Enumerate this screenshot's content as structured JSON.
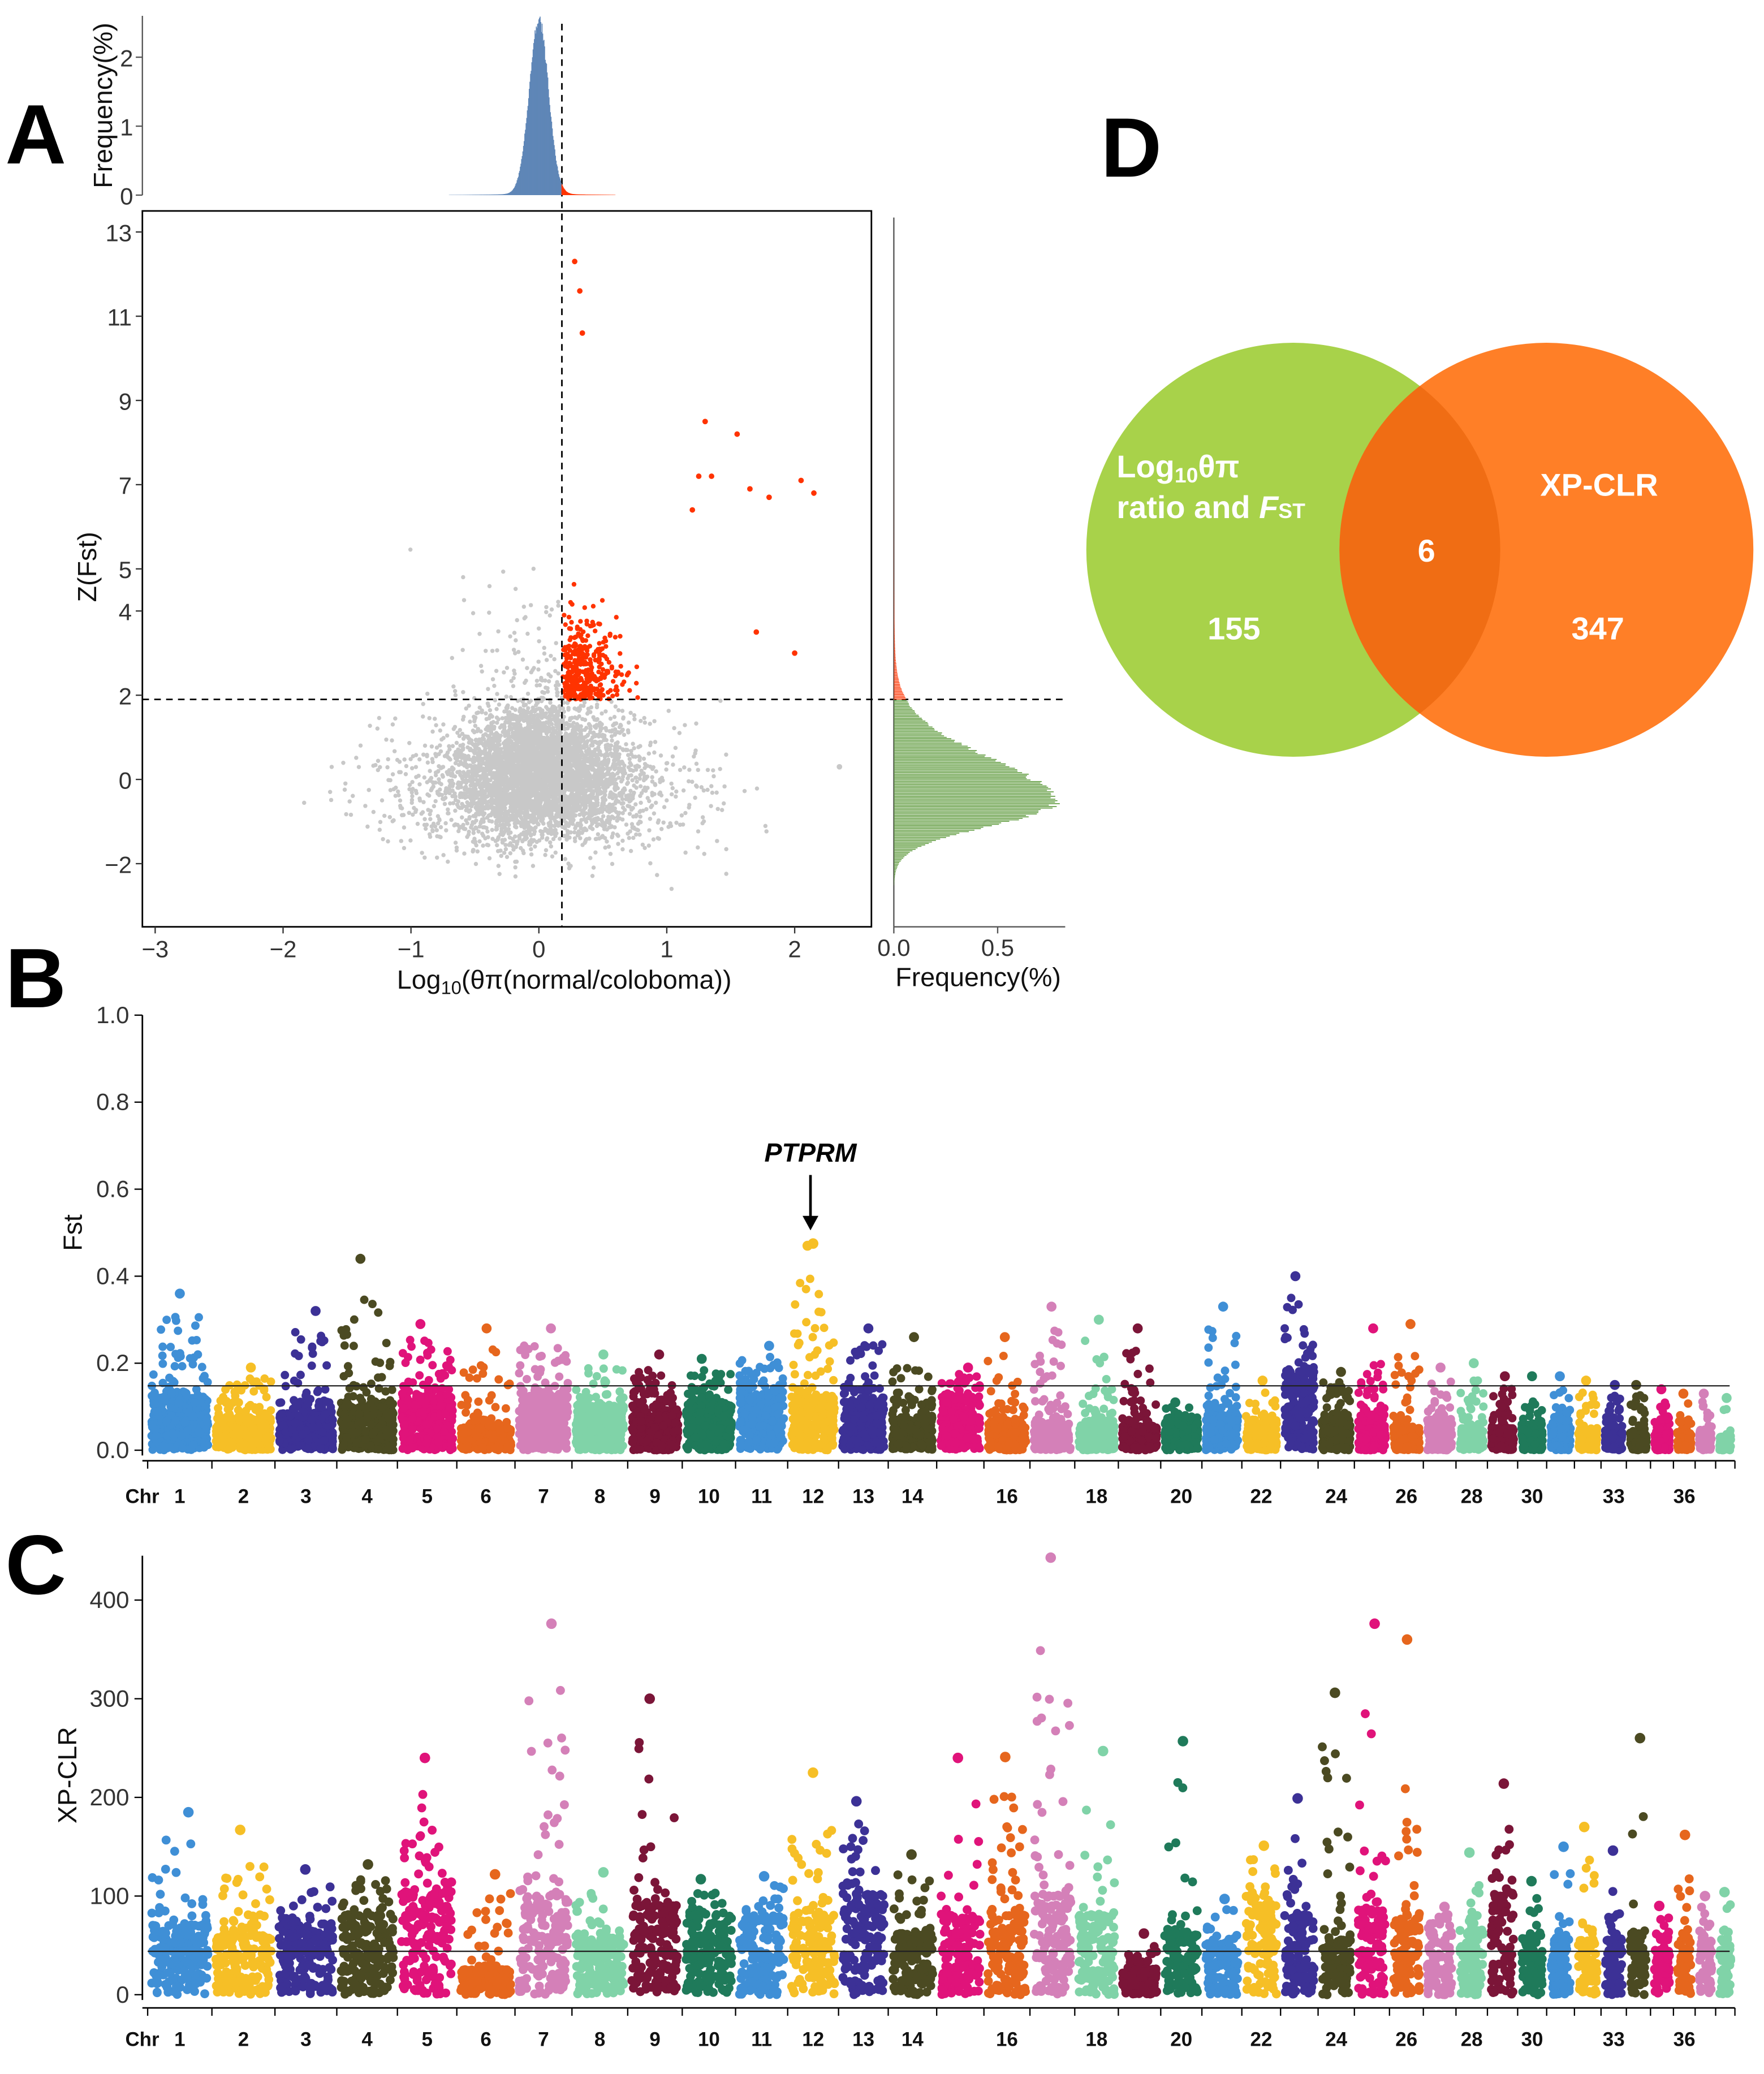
{
  "panels": {
    "a": "A",
    "b": "B",
    "c": "C",
    "d": "D"
  },
  "colors": {
    "gray": "#c8c8c8",
    "red": "#ff3300",
    "blue_hist": "#5f86b7",
    "green_hist": "#5e9a3c",
    "venn_green": "#a8d24a",
    "venn_orange": "#ff7f27",
    "venn_overlap": "#f06d14",
    "chr_palette": [
      "#3f8fd6",
      "#f6bf26",
      "#3c3196",
      "#4b4a22",
      "#e0137a",
      "#e6661d",
      "#d480b8",
      "#80d3a8",
      "#7b1538",
      "#1f7a5a"
    ]
  },
  "chart_data": [
    {
      "id": "A",
      "type": "scatter",
      "xlabel": "Log10(θπ(normal/coloboma))",
      "xlabel_main": "Log",
      "xlabel_sub": "10",
      "xlabel_rest": "(θπ(normal/coloboma))",
      "ylabel": "Z(Fst)",
      "xlim": [
        -3.1,
        2.6
      ],
      "ylim": [
        -3.5,
        13.5
      ],
      "xticks": [
        "−3",
        "−2",
        "−1",
        "0",
        "1",
        "2"
      ],
      "xtick_values": [
        -3,
        -2,
        -1,
        0,
        1,
        2
      ],
      "yticks": [
        "−2",
        "0",
        "2",
        "4",
        "5",
        "7",
        "9",
        "11",
        "13"
      ],
      "ytick_values": [
        -2,
        0,
        2,
        4,
        5,
        7,
        9,
        11,
        13
      ],
      "x_threshold": 0.18,
      "y_threshold": 1.9,
      "notable_points": [
        {
          "x": 0.28,
          "y": 12.3
        },
        {
          "x": 0.32,
          "y": 11.6
        },
        {
          "x": 0.34,
          "y": 10.6
        },
        {
          "x": 1.3,
          "y": 8.5
        },
        {
          "x": 1.55,
          "y": 8.2
        },
        {
          "x": 2.05,
          "y": 7.1
        },
        {
          "x": 2.15,
          "y": 6.8
        },
        {
          "x": 1.65,
          "y": 6.9
        },
        {
          "x": 1.8,
          "y": 6.7
        },
        {
          "x": 1.25,
          "y": 7.2
        },
        {
          "x": 1.35,
          "y": 7.2
        },
        {
          "x": 1.2,
          "y": 6.4
        },
        {
          "x": 2.0,
          "y": 3.0
        },
        {
          "x": 1.7,
          "y": 3.5
        },
        {
          "x": 2.35,
          "y": 0.3
        }
      ],
      "top_histogram": {
        "ylabel": "Frequency(%)",
        "yticks": [
          "0",
          "1",
          "2"
        ],
        "ytick_values": [
          0,
          1,
          2
        ],
        "peak": 2.6
      },
      "right_histogram": {
        "xlabel": "Frequency(%)",
        "xticks": [
          "0.0",
          "0.5"
        ],
        "xtick_values": [
          0.0,
          0.5
        ],
        "peak": 0.8
      }
    },
    {
      "id": "B",
      "type": "scatter",
      "subtype": "manhattan",
      "ylabel": "Fst",
      "ylim": [
        0.0,
        1.0
      ],
      "yticks": [
        "0.0",
        "0.2",
        "0.4",
        "0.6",
        "0.8",
        "1.0"
      ],
      "ytick_values": [
        0.0,
        0.2,
        0.4,
        0.6,
        0.8,
        1.0
      ],
      "threshold": 0.148,
      "chr_axis_label": "Chr",
      "chr_labels": [
        {
          "label": "1",
          "chr": 1
        },
        {
          "label": "2",
          "chr": 2
        },
        {
          "label": "3",
          "chr": 3
        },
        {
          "label": "4",
          "chr": 4
        },
        {
          "label": "5",
          "chr": 5
        },
        {
          "label": "6",
          "chr": 6
        },
        {
          "label": "7",
          "chr": 7
        },
        {
          "label": "8",
          "chr": 8
        },
        {
          "label": "9",
          "chr": 9
        },
        {
          "label": "10",
          "chr": 10
        },
        {
          "label": "11",
          "chr": 11
        },
        {
          "label": "12",
          "chr": 12
        },
        {
          "label": "13",
          "chr": 13
        },
        {
          "label": "14",
          "chr": 14
        },
        {
          "label": "16",
          "chr": 16
        },
        {
          "label": "18",
          "chr": 18
        },
        {
          "label": "20",
          "chr": 20
        },
        {
          "label": "22",
          "chr": 22
        },
        {
          "label": "24",
          "chr": 24
        },
        {
          "label": "26",
          "chr": 26
        },
        {
          "label": "28",
          "chr": 28
        },
        {
          "label": "30",
          "chr": 30
        },
        {
          "label": "33",
          "chr": 33
        },
        {
          "label": "36",
          "chr": 36
        }
      ],
      "chr_max": [
        0.36,
        0.19,
        0.32,
        0.44,
        0.29,
        0.28,
        0.28,
        0.22,
        0.22,
        0.21,
        0.24,
        0.47,
        0.28,
        0.26,
        0.19,
        0.26,
        0.33,
        0.3,
        0.28,
        0.11,
        0.33,
        0.16,
        0.4,
        0.18,
        0.28,
        0.29,
        0.19,
        0.2,
        0.17,
        0.17,
        0.17,
        0.16,
        0.15,
        0.15,
        0.14,
        0.13,
        0.13,
        0.12
      ],
      "chr_base": [
        0.12,
        0.07,
        0.08,
        0.1,
        0.12,
        0.05,
        0.12,
        0.1,
        0.08,
        0.1,
        0.12,
        0.12,
        0.11,
        0.07,
        0.12,
        0.06,
        0.06,
        0.06,
        0.05,
        0.06,
        0.08,
        0.05,
        0.18,
        0.07,
        0.08,
        0.05,
        0.06,
        0.05,
        0.05,
        0.05,
        0.05,
        0.04,
        0.04,
        0.04,
        0.04,
        0.04,
        0.04,
        0.03
      ],
      "annotation": {
        "label": "PTPRM",
        "chr": 12,
        "value": 0.475
      }
    },
    {
      "id": "C",
      "type": "scatter",
      "subtype": "manhattan",
      "ylabel": "XP-CLR",
      "ylim": [
        0,
        445
      ],
      "yticks": [
        "0",
        "100",
        "200",
        "300",
        "400"
      ],
      "ytick_values": [
        0,
        100,
        200,
        300,
        400
      ],
      "threshold": 44,
      "chr_axis_label": "Chr",
      "chr_labels": [
        {
          "label": "1",
          "chr": 1
        },
        {
          "label": "2",
          "chr": 2
        },
        {
          "label": "3",
          "chr": 3
        },
        {
          "label": "4",
          "chr": 4
        },
        {
          "label": "5",
          "chr": 5
        },
        {
          "label": "6",
          "chr": 6
        },
        {
          "label": "7",
          "chr": 7
        },
        {
          "label": "8",
          "chr": 8
        },
        {
          "label": "9",
          "chr": 9
        },
        {
          "label": "10",
          "chr": 10
        },
        {
          "label": "11",
          "chr": 11
        },
        {
          "label": "12",
          "chr": 12
        },
        {
          "label": "13",
          "chr": 13
        },
        {
          "label": "14",
          "chr": 14
        },
        {
          "label": "16",
          "chr": 16
        },
        {
          "label": "18",
          "chr": 18
        },
        {
          "label": "20",
          "chr": 20
        },
        {
          "label": "22",
          "chr": 22
        },
        {
          "label": "24",
          "chr": 24
        },
        {
          "label": "26",
          "chr": 26
        },
        {
          "label": "28",
          "chr": 28
        },
        {
          "label": "30",
          "chr": 30
        },
        {
          "label": "33",
          "chr": 33
        },
        {
          "label": "36",
          "chr": 36
        }
      ],
      "chr_max": [
        185,
        167,
        127,
        132,
        240,
        122,
        376,
        124,
        300,
        117,
        120,
        225,
        196,
        142,
        240,
        241,
        443,
        247,
        62,
        257,
        97,
        151,
        199,
        306,
        376,
        360,
        89,
        144,
        214,
        115,
        150,
        170,
        146,
        260,
        90,
        162,
        100,
        104
      ],
      "chr_base": [
        70,
        60,
        70,
        80,
        100,
        25,
        100,
        55,
        90,
        80,
        75,
        80,
        100,
        60,
        75,
        80,
        100,
        80,
        25,
        60,
        50,
        90,
        80,
        55,
        85,
        80,
        60,
        65,
        100,
        55,
        55,
        55,
        55,
        60,
        45,
        55,
        55,
        55
      ]
    },
    {
      "id": "D",
      "type": "venn",
      "sets": [
        {
          "name": "Log10θπ ratio and FST",
          "line1_main": "Log",
          "line1_sub": "10",
          "line1_rest": "θπ",
          "line2_main": "ratio and ",
          "line2_italic": "F",
          "line2_sub": "ST",
          "only": "155"
        },
        {
          "name": "XP-CLR",
          "only": "347"
        }
      ],
      "intersection": "6"
    }
  ]
}
